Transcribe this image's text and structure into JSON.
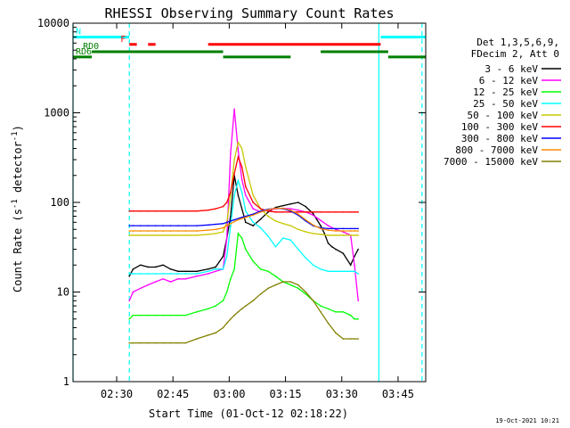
{
  "chart_data": {
    "type": "line",
    "title": "RHESSI Observing Summary Count Rates",
    "xlabel": "Start Time (01-Oct-12 02:18:22)",
    "ylabel_main": "Count Rate (s",
    "ylabel_sup1": "-1",
    "ylabel_mid": " detector",
    "ylabel_sup2": "-1",
    "ylabel_end": ")",
    "yscale": "log",
    "ylim": [
      1,
      10000
    ],
    "x_unit": "minutes after 02:18:22",
    "xlim": [
      0,
      94
    ],
    "x_ticks": [
      {
        "x": 11.63,
        "label": "02:30"
      },
      {
        "x": 26.63,
        "label": "02:45"
      },
      {
        "x": 41.63,
        "label": "03:00"
      },
      {
        "x": 56.63,
        "label": "03:15"
      },
      {
        "x": 71.63,
        "label": "03:30"
      },
      {
        "x": 86.63,
        "label": "03:45"
      }
    ],
    "y_ticks": [
      {
        "y": 1,
        "label": "1"
      },
      {
        "y": 10,
        "label": "10"
      },
      {
        "y": 100,
        "label": "100"
      },
      {
        "y": 1000,
        "label": "1000"
      },
      {
        "y": 10000,
        "label": "10000"
      }
    ],
    "legend_header": [
      "Det 1,3,5,6,9,",
      "FDecim 2, Att 0"
    ],
    "legend_position": "right",
    "timestamp": "19-Oct-2021 10:21",
    "series": [
      {
        "name": "3 - 6 keV",
        "color": "#000000",
        "x": [
          15,
          16,
          18,
          20,
          22,
          24,
          26,
          28,
          30,
          33,
          36,
          38,
          40,
          41,
          42,
          43,
          44,
          46,
          48,
          50,
          52,
          54,
          56,
          58,
          60,
          62,
          64,
          66,
          67,
          68,
          69,
          70,
          72,
          74,
          75,
          76
        ],
        "y": [
          15,
          18,
          20,
          19,
          19,
          20,
          18,
          17,
          17,
          17,
          18,
          19,
          25,
          40,
          70,
          200,
          120,
          60,
          55,
          65,
          78,
          88,
          92,
          96,
          100,
          90,
          75,
          55,
          45,
          35,
          32,
          30,
          27,
          20,
          25,
          30
        ]
      },
      {
        "name": "6 - 12 keV",
        "color": "#ff00ff",
        "x": [
          15,
          16,
          18,
          20,
          22,
          24,
          26,
          28,
          30,
          33,
          36,
          38,
          40,
          41,
          42,
          43,
          44,
          45,
          46,
          48,
          50,
          52,
          54,
          56,
          58,
          60,
          62,
          64,
          66,
          68,
          70,
          72,
          74,
          75,
          76
        ],
        "y": [
          8,
          10,
          11,
          12,
          13,
          14,
          13,
          14,
          14,
          15,
          16,
          17,
          18,
          40,
          350,
          1100,
          380,
          180,
          120,
          85,
          78,
          82,
          85,
          86,
          85,
          82,
          78,
          72,
          63,
          55,
          50,
          47,
          43,
          20,
          8
        ]
      },
      {
        "name": "12 - 25 keV",
        "color": "#00ff00",
        "x": [
          15,
          16,
          18,
          20,
          22,
          24,
          26,
          28,
          30,
          33,
          36,
          38,
          40,
          41,
          42,
          43,
          44,
          45,
          46,
          48,
          50,
          52,
          54,
          56,
          58,
          60,
          62,
          64,
          66,
          68,
          70,
          72,
          74,
          75,
          76
        ],
        "y": [
          5,
          5.5,
          5.5,
          5.5,
          5.5,
          5.5,
          5.5,
          5.5,
          5.5,
          6,
          6.5,
          7,
          8,
          10,
          14,
          18,
          45,
          40,
          30,
          22,
          18,
          17,
          15,
          13,
          12,
          11,
          9.5,
          8,
          7,
          6.5,
          6,
          6,
          5.5,
          5,
          5
        ]
      },
      {
        "name": "25 - 50 keV",
        "color": "#00ffff",
        "x": [
          15,
          16,
          18,
          20,
          22,
          24,
          26,
          28,
          30,
          33,
          36,
          38,
          40,
          41,
          42,
          43,
          44,
          45,
          46,
          48,
          50,
          52,
          54,
          56,
          58,
          60,
          62,
          64,
          66,
          68,
          70,
          72,
          74,
          75,
          76
        ],
        "y": [
          16,
          16,
          16,
          16,
          16,
          16,
          16,
          16,
          16,
          16,
          17,
          18,
          18,
          25,
          55,
          120,
          175,
          130,
          80,
          60,
          52,
          42,
          32,
          40,
          38,
          30,
          24,
          20,
          18,
          17,
          17,
          17,
          17,
          17,
          16
        ]
      },
      {
        "name": "50 - 100 keV",
        "color": "#c8c800",
        "x": [
          15,
          16,
          18,
          20,
          22,
          24,
          26,
          28,
          30,
          33,
          36,
          38,
          40,
          41,
          42,
          43,
          44,
          45,
          46,
          48,
          50,
          52,
          54,
          56,
          58,
          60,
          62,
          64,
          66,
          68,
          70,
          72,
          74,
          75,
          76
        ],
        "y": [
          43,
          43,
          43,
          43,
          43,
          43,
          43,
          43,
          43,
          43,
          44,
          45,
          47,
          60,
          120,
          300,
          470,
          400,
          250,
          120,
          85,
          70,
          62,
          58,
          55,
          50,
          47,
          45,
          44,
          43,
          43,
          43,
          43,
          43,
          43
        ]
      },
      {
        "name": "100 - 300 keV",
        "color": "#ff0000",
        "x": [
          15,
          16,
          18,
          20,
          22,
          24,
          26,
          28,
          30,
          33,
          36,
          38,
          40,
          41,
          42,
          43,
          44,
          45,
          46,
          48,
          50,
          52,
          54,
          56,
          58,
          60,
          62,
          64,
          66,
          68,
          70,
          72,
          74,
          75,
          76
        ],
        "y": [
          80,
          80,
          80,
          80,
          80,
          80,
          80,
          80,
          80,
          80,
          82,
          85,
          90,
          100,
          130,
          210,
          320,
          250,
          150,
          100,
          85,
          80,
          78,
          78,
          78,
          78,
          78,
          78,
          78,
          78,
          78,
          78,
          78,
          78,
          78
        ]
      },
      {
        "name": "300 - 800 keV",
        "color": "#0000ff",
        "x": [
          15,
          16,
          18,
          20,
          22,
          24,
          26,
          28,
          30,
          33,
          36,
          38,
          40,
          41,
          42,
          43,
          44,
          45,
          46,
          48,
          50,
          52,
          54,
          56,
          58,
          60,
          62,
          64,
          66,
          68,
          70,
          72,
          74,
          75,
          76
        ],
        "y": [
          55,
          55,
          55,
          55,
          55,
          55,
          55,
          55,
          55,
          55,
          56,
          57,
          58,
          60,
          62,
          64,
          66,
          68,
          70,
          74,
          80,
          84,
          86,
          85,
          80,
          72,
          62,
          55,
          52,
          51,
          51,
          51,
          51,
          51,
          51
        ]
      },
      {
        "name": "800 - 7000 keV",
        "color": "#ff8c00",
        "x": [
          15,
          16,
          18,
          20,
          22,
          24,
          26,
          28,
          30,
          33,
          36,
          38,
          40,
          41,
          42,
          43,
          44,
          45,
          46,
          48,
          50,
          52,
          54,
          56,
          58,
          60,
          62,
          64,
          66,
          68,
          70,
          72,
          74,
          75,
          76
        ],
        "y": [
          48,
          48,
          48,
          48,
          48,
          48,
          48,
          48,
          48,
          48,
          49,
          50,
          52,
          55,
          58,
          61,
          64,
          66,
          68,
          72,
          78,
          83,
          86,
          86,
          82,
          74,
          64,
          56,
          51,
          49,
          48,
          48,
          48,
          48,
          48
        ]
      },
      {
        "name": "7000 - 15000 keV",
        "color": "#808000",
        "x": [
          15,
          16,
          18,
          20,
          22,
          24,
          26,
          28,
          30,
          33,
          36,
          38,
          40,
          41,
          42,
          43,
          44,
          45,
          46,
          48,
          50,
          52,
          54,
          56,
          58,
          60,
          62,
          64,
          66,
          68,
          70,
          72,
          74,
          75,
          76
        ],
        "y": [
          2.7,
          2.7,
          2.7,
          2.7,
          2.7,
          2.7,
          2.7,
          2.7,
          2.7,
          3,
          3.3,
          3.5,
          4,
          4.5,
          5,
          5.5,
          6,
          6.5,
          7,
          8,
          9.5,
          11,
          12,
          13,
          13,
          12,
          10,
          8,
          6,
          4.5,
          3.5,
          3,
          3,
          3,
          3
        ]
      }
    ],
    "flags": [
      {
        "label": "N",
        "color": "#00ffff",
        "y": 7000,
        "spans": [
          [
            0,
            15
          ],
          [
            82,
            94
          ]
        ]
      },
      {
        "label": "F",
        "color": "#ff0000",
        "y": 5800,
        "spans": [
          [
            15,
            17
          ],
          [
            20,
            22
          ],
          [
            36,
            82
          ]
        ]
      },
      {
        "label": "RD0",
        "color": "#008000",
        "y": 4800,
        "spans": [
          [
            5,
            40
          ],
          [
            66,
            84
          ]
        ]
      },
      {
        "label": "RD6",
        "color": "#008000",
        "y": 4200,
        "spans": [
          [
            0,
            5
          ],
          [
            40,
            58
          ],
          [
            84,
            94
          ]
        ]
      }
    ],
    "vlines": [
      {
        "x": 0,
        "color": "#00ffff",
        "style": "solid"
      },
      {
        "x": 15,
        "color": "#00ffff",
        "style": "dashed"
      },
      {
        "x": 81.5,
        "color": "#00ffff",
        "style": "solid"
      },
      {
        "x": 93,
        "color": "#00ffff",
        "style": "dashed"
      }
    ]
  }
}
